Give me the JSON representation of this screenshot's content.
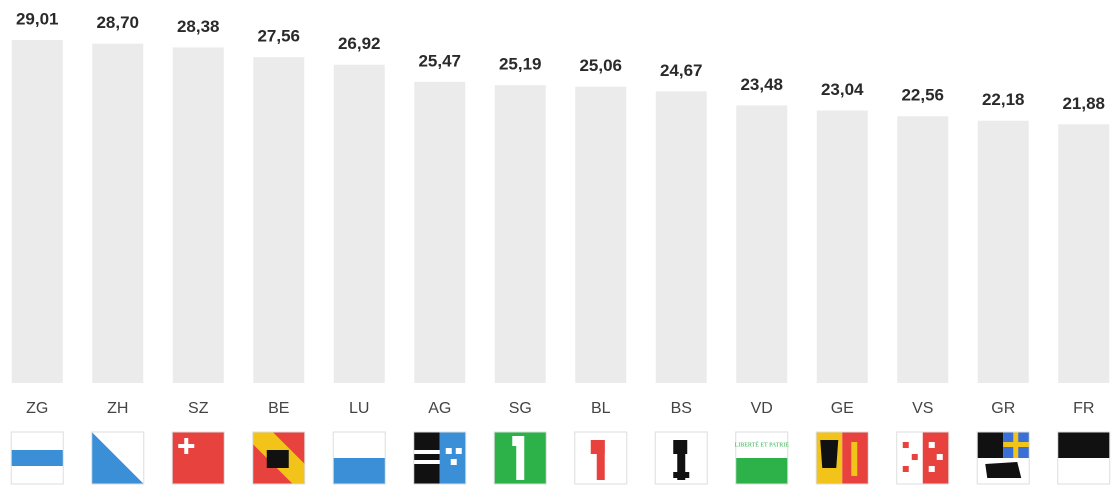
{
  "chart_data": {
    "type": "bar",
    "categories": [
      "ZG",
      "ZH",
      "SZ",
      "BE",
      "LU",
      "AG",
      "SG",
      "BL",
      "BS",
      "VD",
      "GE",
      "VS",
      "GR",
      "FR"
    ],
    "values": [
      29.01,
      28.7,
      28.38,
      27.56,
      26.92,
      25.47,
      25.19,
      25.06,
      24.67,
      23.48,
      23.04,
      22.56,
      22.18,
      21.88
    ],
    "value_labels": [
      "29,01",
      "28,70",
      "28,38",
      "27,56",
      "26,92",
      "25,47",
      "25,19",
      "25,06",
      "24,67",
      "23,48",
      "23,04",
      "22,56",
      "22,18",
      "21,88"
    ],
    "color": "#ebebeb",
    "flag_text": "LIBERTÉ ET PATRIE"
  }
}
